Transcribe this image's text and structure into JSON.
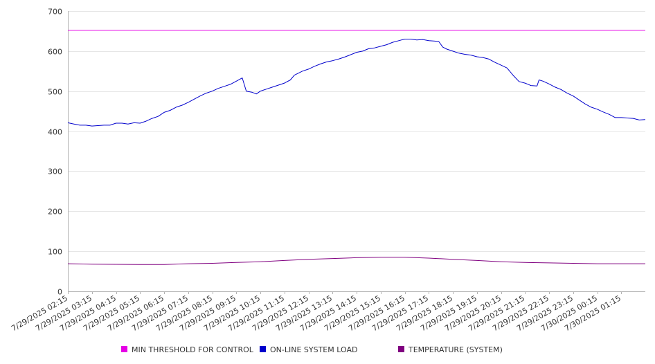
{
  "chart_data": {
    "type": "line",
    "title": "",
    "xlabel": "",
    "ylabel": "",
    "ylim": [
      0,
      700
    ],
    "yticks": [
      0,
      100,
      200,
      300,
      400,
      500,
      600,
      700
    ],
    "x_tick_labels": [
      "7/29/2025 02:15",
      "7/29/2025 03:15",
      "7/29/2025 04:15",
      "7/29/2025 05:15",
      "7/29/2025 06:15",
      "7/29/2025 07:15",
      "7/29/2025 08:15",
      "7/29/2025 09:15",
      "7/29/2025 10:15",
      "7/29/2025 11:15",
      "7/29/2025 12:15",
      "7/29/2025 13:15",
      "7/29/2025 14:15",
      "7/29/2025 15:15",
      "7/29/2025 16:15",
      "7/29/2025 17:15",
      "7/29/2025 18:15",
      "7/29/2025 19:15",
      "7/29/2025 20:15",
      "7/29/2025 21:15",
      "7/29/2025 22:15",
      "7/29/2025 23:15",
      "7/30/2025 00:15",
      "7/30/2025 01:15"
    ],
    "x_range": [
      "7/29/2025 02:15",
      "7/30/2025 02:15"
    ],
    "grid": true,
    "legend_position": "bottom",
    "series": [
      {
        "name": "MIN THRESHOLD FOR CONTROL",
        "color": "#e600e6",
        "points": [
          [
            "7/29/2025 02:15",
            652
          ],
          [
            "7/30/2025 02:15",
            652
          ]
        ]
      },
      {
        "name": "ON-LINE SYSTEM LOAD",
        "color": "#0000cc",
        "points": [
          [
            "7/29/2025 02:15",
            421
          ],
          [
            "7/29/2025 02:30",
            418
          ],
          [
            "7/29/2025 02:45",
            415
          ],
          [
            "7/29/2025 03:00",
            415
          ],
          [
            "7/29/2025 03:15",
            413
          ],
          [
            "7/29/2025 03:30",
            414
          ],
          [
            "7/29/2025 03:45",
            415
          ],
          [
            "7/29/2025 04:00",
            415
          ],
          [
            "7/29/2025 04:15",
            420
          ],
          [
            "7/29/2025 04:30",
            420
          ],
          [
            "7/29/2025 04:45",
            418
          ],
          [
            "7/29/2025 05:00",
            421
          ],
          [
            "7/29/2025 05:15",
            420
          ],
          [
            "7/29/2025 05:30",
            425
          ],
          [
            "7/29/2025 05:45",
            432
          ],
          [
            "7/29/2025 06:00",
            437
          ],
          [
            "7/29/2025 06:15",
            447
          ],
          [
            "7/29/2025 06:30",
            452
          ],
          [
            "7/29/2025 06:45",
            460
          ],
          [
            "7/29/2025 07:00",
            465
          ],
          [
            "7/29/2025 07:15",
            472
          ],
          [
            "7/29/2025 07:30",
            480
          ],
          [
            "7/29/2025 07:45",
            488
          ],
          [
            "7/29/2025 08:00",
            495
          ],
          [
            "7/29/2025 08:15",
            500
          ],
          [
            "7/29/2025 08:30",
            507
          ],
          [
            "7/29/2025 08:45",
            512
          ],
          [
            "7/29/2025 09:00",
            517
          ],
          [
            "7/29/2025 09:15",
            525
          ],
          [
            "7/29/2025 09:30",
            533
          ],
          [
            "7/29/2025 09:40",
            500
          ],
          [
            "7/29/2025 09:55",
            497
          ],
          [
            "7/29/2025 10:05",
            493
          ],
          [
            "7/29/2025 10:15",
            500
          ],
          [
            "7/29/2025 10:30",
            505
          ],
          [
            "7/29/2025 10:45",
            510
          ],
          [
            "7/29/2025 11:00",
            515
          ],
          [
            "7/29/2025 11:15",
            520
          ],
          [
            "7/29/2025 11:30",
            528
          ],
          [
            "7/29/2025 11:40",
            540
          ],
          [
            "7/29/2025 12:00",
            550
          ],
          [
            "7/29/2025 12:15",
            555
          ],
          [
            "7/29/2025 12:30",
            562
          ],
          [
            "7/29/2025 12:45",
            568
          ],
          [
            "7/29/2025 13:00",
            573
          ],
          [
            "7/29/2025 13:15",
            576
          ],
          [
            "7/29/2025 13:30",
            580
          ],
          [
            "7/29/2025 13:45",
            585
          ],
          [
            "7/29/2025 14:00",
            591
          ],
          [
            "7/29/2025 14:15",
            597
          ],
          [
            "7/29/2025 14:30",
            600
          ],
          [
            "7/29/2025 14:45",
            606
          ],
          [
            "7/29/2025 15:00",
            608
          ],
          [
            "7/29/2025 15:15",
            612
          ],
          [
            "7/29/2025 15:30",
            616
          ],
          [
            "7/29/2025 15:45",
            622
          ],
          [
            "7/29/2025 16:00",
            626
          ],
          [
            "7/29/2025 16:15",
            630
          ],
          [
            "7/29/2025 16:30",
            630
          ],
          [
            "7/29/2025 16:45",
            628
          ],
          [
            "7/29/2025 17:00",
            629
          ],
          [
            "7/29/2025 17:15",
            626
          ],
          [
            "7/29/2025 17:30",
            625
          ],
          [
            "7/29/2025 17:40",
            624
          ],
          [
            "7/29/2025 17:50",
            610
          ],
          [
            "7/29/2025 18:00",
            605
          ],
          [
            "7/29/2025 18:15",
            600
          ],
          [
            "7/29/2025 18:30",
            595
          ],
          [
            "7/29/2025 18:45",
            592
          ],
          [
            "7/29/2025 19:00",
            590
          ],
          [
            "7/29/2025 19:15",
            586
          ],
          [
            "7/29/2025 19:30",
            584
          ],
          [
            "7/29/2025 19:45",
            580
          ],
          [
            "7/29/2025 20:00",
            572
          ],
          [
            "7/29/2025 20:15",
            565
          ],
          [
            "7/29/2025 20:30",
            558
          ],
          [
            "7/29/2025 20:45",
            540
          ],
          [
            "7/29/2025 21:00",
            524
          ],
          [
            "7/29/2025 21:15",
            520
          ],
          [
            "7/29/2025 21:30",
            514
          ],
          [
            "7/29/2025 21:45",
            513
          ],
          [
            "7/29/2025 21:50",
            528
          ],
          [
            "7/29/2025 22:00",
            525
          ],
          [
            "7/29/2025 22:15",
            518
          ],
          [
            "7/29/2025 22:30",
            510
          ],
          [
            "7/29/2025 22:45",
            504
          ],
          [
            "7/29/2025 23:00",
            495
          ],
          [
            "7/29/2025 23:15",
            488
          ],
          [
            "7/29/2025 23:30",
            478
          ],
          [
            "7/29/2025 23:45",
            468
          ],
          [
            "7/30/2025 00:00",
            460
          ],
          [
            "7/30/2025 00:15",
            455
          ],
          [
            "7/30/2025 00:30",
            448
          ],
          [
            "7/30/2025 00:45",
            442
          ],
          [
            "7/30/2025 01:00",
            434
          ],
          [
            "7/30/2025 01:15",
            434
          ],
          [
            "7/30/2025 01:30",
            433
          ],
          [
            "7/30/2025 01:45",
            432
          ],
          [
            "7/30/2025 02:00",
            428
          ],
          [
            "7/30/2025 02:15",
            429
          ]
        ]
      },
      {
        "name": "TEMPERATURE (SYSTEM)",
        "color": "#800080",
        "points": [
          [
            "7/29/2025 02:15",
            69
          ],
          [
            "7/29/2025 03:15",
            68
          ],
          [
            "7/29/2025 05:15",
            67
          ],
          [
            "7/29/2025 06:15",
            67
          ],
          [
            "7/29/2025 07:15",
            69
          ],
          [
            "7/29/2025 08:15",
            70
          ],
          [
            "7/29/2025 09:15",
            72
          ],
          [
            "7/29/2025 10:15",
            74
          ],
          [
            "7/29/2025 11:15",
            77
          ],
          [
            "7/29/2025 12:15",
            80
          ],
          [
            "7/29/2025 13:15",
            82
          ],
          [
            "7/29/2025 14:15",
            84
          ],
          [
            "7/29/2025 15:15",
            85
          ],
          [
            "7/29/2025 16:15",
            85
          ],
          [
            "7/29/2025 17:15",
            83
          ],
          [
            "7/29/2025 18:15",
            80
          ],
          [
            "7/29/2025 19:15",
            77
          ],
          [
            "7/29/2025 20:15",
            74
          ],
          [
            "7/29/2025 21:15",
            72
          ],
          [
            "7/29/2025 22:15",
            71
          ],
          [
            "7/29/2025 23:15",
            70
          ],
          [
            "7/30/2025 00:15",
            69
          ],
          [
            "7/30/2025 01:15",
            69
          ],
          [
            "7/30/2025 02:15",
            69
          ]
        ]
      }
    ]
  },
  "colors": {
    "grid": "#e6e6e6",
    "axis": "#b3b3b3",
    "text": "#333333"
  }
}
